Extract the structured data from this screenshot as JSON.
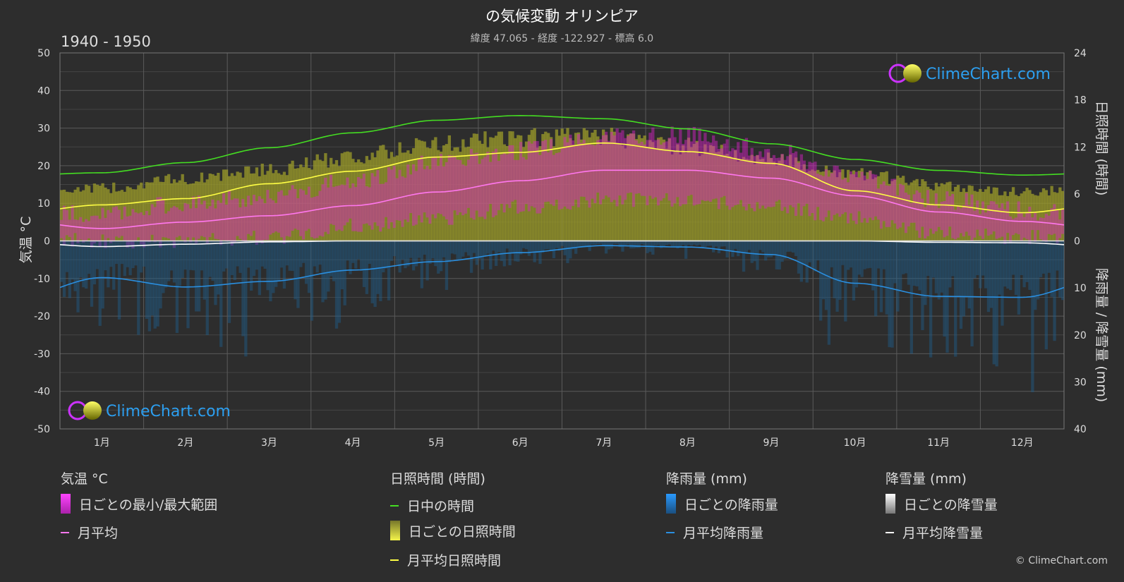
{
  "header": {
    "title": "の気候変動 オリンピア",
    "subtitle": "緯度 47.065 - 経度 -122.927 - 標高 6.0",
    "period": "1940 - 1950"
  },
  "axes": {
    "left_label": "気温 °C",
    "right_top_label": "日照時間 (時間)",
    "right_bottom_label": "降雨量 / 降雪量 (mm)",
    "left_ticks": [
      "50",
      "40",
      "30",
      "20",
      "10",
      "0",
      "-10",
      "-20",
      "-30",
      "-40",
      "-50"
    ],
    "right_top_ticks": [
      "24",
      "18",
      "12",
      "6",
      "0"
    ],
    "right_bottom_ticks": [
      "10",
      "20",
      "30",
      "40"
    ],
    "months": [
      "1月",
      "2月",
      "3月",
      "4月",
      "5月",
      "6月",
      "7月",
      "8月",
      "9月",
      "10月",
      "11月",
      "12月"
    ]
  },
  "watermark": {
    "brand": "ClimeChart.com"
  },
  "legend": {
    "temp": {
      "title": "気温 °C",
      "range": "日ごとの最小/最大範囲",
      "mean": "月平均"
    },
    "sun": {
      "title": "日照時間 (時間)",
      "daylight": "日中の時間",
      "daily": "日ごとの日照時間",
      "mean": "月平均日照時間"
    },
    "rain": {
      "title": "降雨量 (mm)",
      "daily": "日ごとの降雨量",
      "mean": "月平均降雨量"
    },
    "snow": {
      "title": "降雪量 (mm)",
      "daily": "日ごとの降雪量",
      "mean": "月平均降雪量"
    }
  },
  "copyright": "© ClimeChart.com",
  "colors": {
    "daylight": "#44dd22",
    "sunshine_mean": "#ffff44",
    "temp_mean": "#ff77ee",
    "rain_mean": "#2a8fe0",
    "snow_mean": "#ffffff",
    "temp_range": "#dd22cc",
    "sunshine_fill": "#9b9b2a",
    "rain_fill": "#1f5f8f",
    "brand": "#2c9ff0"
  },
  "chart_data": {
    "type": "line",
    "categories": [
      "1月",
      "2月",
      "3月",
      "4月",
      "5月",
      "6月",
      "7月",
      "8月",
      "9月",
      "10月",
      "11月",
      "12月"
    ],
    "temp_axis": {
      "label": "気温 °C",
      "ylim": [
        -50,
        50
      ]
    },
    "sunshine_axis": {
      "label": "日照時間 (時間)",
      "ylim": [
        0,
        24
      ]
    },
    "precip_axis": {
      "label": "降雨量 / 降雪量 (mm)",
      "ylim": [
        0,
        40
      ]
    },
    "series": [
      {
        "name": "日中の時間",
        "axis": "sunshine",
        "values": [
          8.7,
          10.0,
          11.9,
          13.8,
          15.4,
          16.0,
          15.6,
          14.3,
          12.4,
          10.4,
          9.0,
          8.4
        ]
      },
      {
        "name": "月平均日照時間",
        "axis": "sunshine",
        "values": [
          4.6,
          5.4,
          7.3,
          8.9,
          10.7,
          11.3,
          12.5,
          11.4,
          9.9,
          6.4,
          4.6,
          3.6
        ]
      },
      {
        "name": "月平均",
        "axis": "temp",
        "values": [
          3.3,
          5.0,
          6.7,
          9.4,
          13.0,
          16.0,
          18.8,
          18.8,
          16.7,
          12.0,
          7.7,
          5.2
        ]
      },
      {
        "name": "月平均降雨量",
        "axis": "precip",
        "values": [
          7.8,
          9.8,
          8.6,
          6.2,
          4.4,
          2.5,
          1.0,
          1.3,
          2.9,
          9.0,
          11.8,
          12.0
        ]
      },
      {
        "name": "月平均降雪量",
        "axis": "precip",
        "values": [
          1.2,
          0.7,
          0.2,
          0,
          0,
          0,
          0,
          0,
          0,
          0,
          0.3,
          0.4
        ]
      }
    ],
    "daily_temp_range_approx": {
      "min": [
        0,
        0,
        1,
        4,
        6,
        9,
        11,
        11,
        9,
        6,
        2,
        1
      ],
      "max": [
        7,
        10,
        12,
        16,
        21,
        24,
        28,
        28,
        24,
        17,
        11,
        8
      ]
    },
    "daily_sunshine_envelope_approx": [
      7.4,
      8.7,
      10.0,
      11.8,
      13.6,
      14.4,
      14.6,
      13.2,
      11.4,
      9.4,
      7.7,
      6.9
    ],
    "grid": true
  }
}
